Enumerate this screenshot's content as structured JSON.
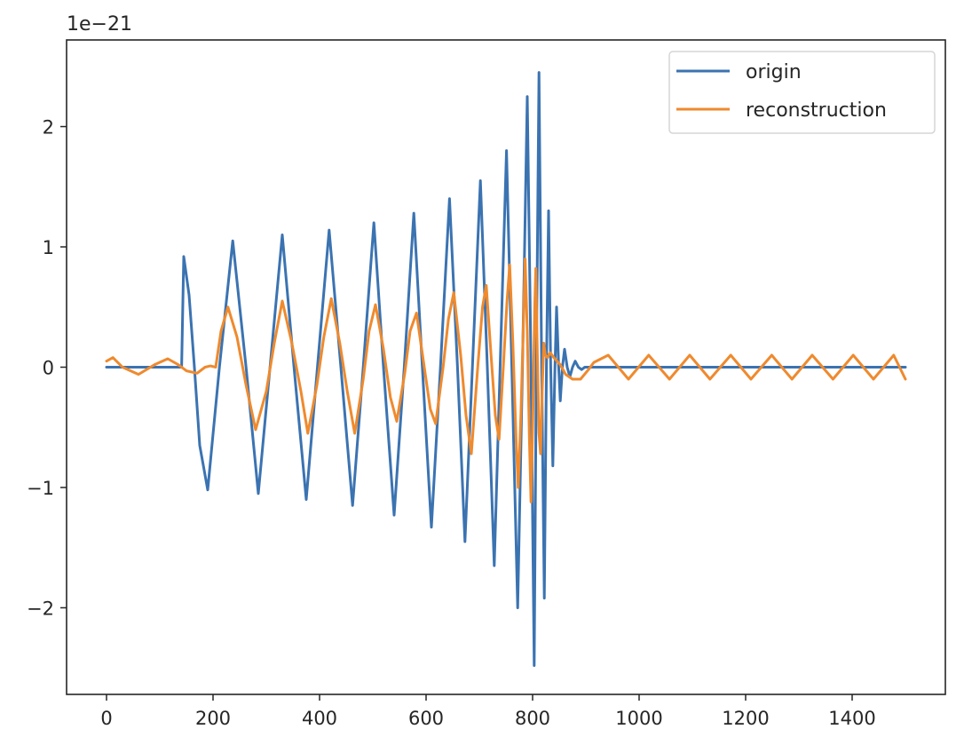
{
  "chart_data": {
    "type": "line",
    "title": "",
    "xlabel": "",
    "ylabel": "",
    "offset_label": "1e−21",
    "xlim": [
      -75,
      1575
    ],
    "ylim": [
      -2.72,
      2.72
    ],
    "x_ticks": [
      0,
      200,
      400,
      600,
      800,
      1000,
      1200,
      1400
    ],
    "x_tick_labels": [
      "0",
      "200",
      "400",
      "600",
      "800",
      "1000",
      "1200",
      "1400"
    ],
    "y_ticks": [
      -2,
      -1,
      0,
      1,
      2
    ],
    "y_tick_labels": [
      "−2",
      "−1",
      "0",
      "1",
      "2"
    ],
    "grid": false,
    "legend_position": "top-right",
    "series": [
      {
        "name": "origin",
        "color": "#3b73b1",
        "points": [
          [
            0,
            0.0
          ],
          [
            140,
            0.0
          ],
          [
            141,
            0.0
          ],
          [
            145,
            0.92
          ],
          [
            155,
            0.6
          ],
          [
            165,
            0.0
          ],
          [
            175,
            -0.65
          ],
          [
            190,
            -1.02
          ],
          [
            212,
            0.0
          ],
          [
            237,
            1.05
          ],
          [
            262,
            0.0
          ],
          [
            285,
            -1.05
          ],
          [
            307,
            0.0
          ],
          [
            330,
            1.1
          ],
          [
            352,
            0.0
          ],
          [
            375,
            -1.1
          ],
          [
            396,
            0.0
          ],
          [
            418,
            1.14
          ],
          [
            440,
            0.0
          ],
          [
            462,
            -1.15
          ],
          [
            482,
            0.0
          ],
          [
            502,
            1.2
          ],
          [
            520,
            0.0
          ],
          [
            540,
            -1.23
          ],
          [
            559,
            0.0
          ],
          [
            577,
            1.28
          ],
          [
            593,
            0.0
          ],
          [
            610,
            -1.33
          ],
          [
            627,
            0.0
          ],
          [
            644,
            1.4
          ],
          [
            659,
            0.0
          ],
          [
            673,
            -1.45
          ],
          [
            687,
            0.0
          ],
          [
            702,
            1.55
          ],
          [
            715,
            0.0
          ],
          [
            728,
            -1.65
          ],
          [
            739,
            0.0
          ],
          [
            751,
            1.8
          ],
          [
            761,
            0.0
          ],
          [
            772,
            -2.0
          ],
          [
            781,
            0.0
          ],
          [
            790,
            2.25
          ],
          [
            797,
            0.0
          ],
          [
            803,
            -2.48
          ],
          [
            807,
            0.0
          ],
          [
            812,
            2.45
          ],
          [
            817,
            0.0
          ],
          [
            822,
            -1.92
          ],
          [
            826,
            0.0
          ],
          [
            830,
            1.3
          ],
          [
            834,
            0.0
          ],
          [
            838,
            -0.82
          ],
          [
            842,
            0.0
          ],
          [
            845,
            0.5
          ],
          [
            849,
            0.0
          ],
          [
            852,
            -0.28
          ],
          [
            856,
            0.0
          ],
          [
            860,
            0.15
          ],
          [
            865,
            0.0
          ],
          [
            870,
            -0.08
          ],
          [
            875,
            0.0
          ],
          [
            880,
            0.05
          ],
          [
            886,
            0.0
          ],
          [
            892,
            -0.02
          ],
          [
            898,
            0.0
          ],
          [
            1500,
            0.0
          ]
        ]
      },
      {
        "name": "reconstruction",
        "color": "#ef8a2e",
        "points": [
          [
            0,
            0.05
          ],
          [
            12,
            0.08
          ],
          [
            30,
            0.0
          ],
          [
            60,
            -0.06
          ],
          [
            90,
            0.02
          ],
          [
            115,
            0.07
          ],
          [
            135,
            0.02
          ],
          [
            150,
            -0.03
          ],
          [
            170,
            -0.05
          ],
          [
            185,
            0.0
          ],
          [
            195,
            0.01
          ],
          [
            205,
            0.0
          ],
          [
            215,
            0.3
          ],
          [
            228,
            0.5
          ],
          [
            245,
            0.25
          ],
          [
            262,
            -0.15
          ],
          [
            280,
            -0.52
          ],
          [
            300,
            -0.2
          ],
          [
            315,
            0.2
          ],
          [
            330,
            0.55
          ],
          [
            348,
            0.2
          ],
          [
            365,
            -0.2
          ],
          [
            378,
            -0.55
          ],
          [
            395,
            -0.15
          ],
          [
            408,
            0.25
          ],
          [
            422,
            0.57
          ],
          [
            438,
            0.2
          ],
          [
            452,
            -0.2
          ],
          [
            466,
            -0.55
          ],
          [
            482,
            -0.1
          ],
          [
            493,
            0.3
          ],
          [
            505,
            0.52
          ],
          [
            520,
            0.15
          ],
          [
            533,
            -0.25
          ],
          [
            545,
            -0.45
          ],
          [
            560,
            -0.05
          ],
          [
            570,
            0.3
          ],
          [
            582,
            0.45
          ],
          [
            595,
            0.05
          ],
          [
            608,
            -0.35
          ],
          [
            618,
            -0.47
          ],
          [
            632,
            0.0
          ],
          [
            642,
            0.4
          ],
          [
            652,
            0.62
          ],
          [
            665,
            0.1
          ],
          [
            675,
            -0.4
          ],
          [
            685,
            -0.72
          ],
          [
            697,
            0.0
          ],
          [
            706,
            0.5
          ],
          [
            713,
            0.68
          ],
          [
            722,
            0.1
          ],
          [
            730,
            -0.4
          ],
          [
            737,
            -0.6
          ],
          [
            745,
            0.0
          ],
          [
            752,
            0.55
          ],
          [
            757,
            0.85
          ],
          [
            763,
            0.2
          ],
          [
            769,
            -0.6
          ],
          [
            773,
            -1.0
          ],
          [
            778,
            -0.4
          ],
          [
            783,
            0.4
          ],
          [
            786,
            0.9
          ],
          [
            790,
            0.3
          ],
          [
            794,
            -0.6
          ],
          [
            797,
            -1.12
          ],
          [
            801,
            -0.3
          ],
          [
            804,
            0.5
          ],
          [
            806,
            0.82
          ],
          [
            809,
            0.1
          ],
          [
            812,
            -0.55
          ],
          [
            815,
            -0.72
          ],
          [
            818,
            -0.2
          ],
          [
            821,
            0.2
          ],
          [
            824,
            0.1
          ],
          [
            828,
            0.08
          ],
          [
            833,
            0.12
          ],
          [
            840,
            0.08
          ],
          [
            852,
            0.02
          ],
          [
            862,
            -0.06
          ],
          [
            875,
            -0.1
          ],
          [
            890,
            -0.1
          ],
          [
            905,
            -0.02
          ],
          [
            915,
            0.04
          ],
          [
            942,
            0.1
          ],
          [
            980,
            -0.1
          ],
          [
            1018,
            0.1
          ],
          [
            1057,
            -0.1
          ],
          [
            1095,
            0.1
          ],
          [
            1133,
            -0.1
          ],
          [
            1172,
            0.1
          ],
          [
            1210,
            -0.1
          ],
          [
            1249,
            0.1
          ],
          [
            1287,
            -0.1
          ],
          [
            1325,
            0.1
          ],
          [
            1364,
            -0.1
          ],
          [
            1402,
            0.1
          ],
          [
            1440,
            -0.1
          ],
          [
            1478,
            0.1
          ],
          [
            1500,
            -0.1
          ]
        ]
      }
    ]
  }
}
